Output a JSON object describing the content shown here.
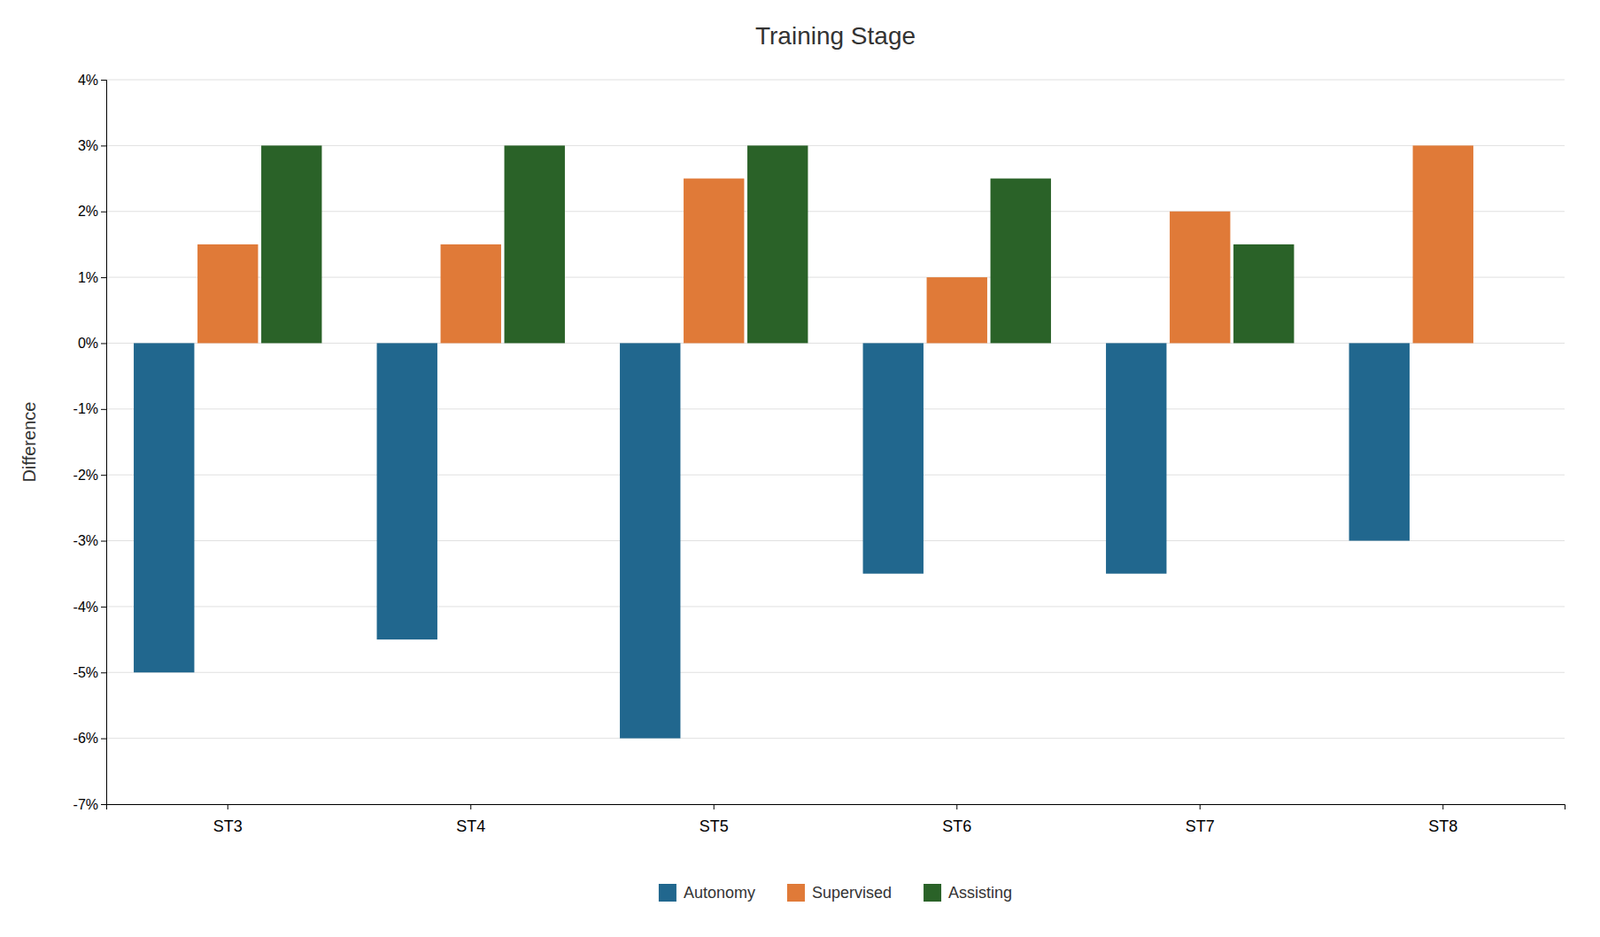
{
  "chart_data": {
    "type": "bar",
    "title": "Training Stage",
    "ylabel": "Difference",
    "categories": [
      "ST3",
      "ST4",
      "ST5",
      "ST6",
      "ST7",
      "ST8"
    ],
    "series": [
      {
        "name": "Autonomy",
        "color": "#21678e",
        "values": [
          -5.0,
          -4.5,
          -6.0,
          -3.5,
          -3.5,
          -3.0
        ]
      },
      {
        "name": "Supervised",
        "color": "#e07a38",
        "values": [
          1.5,
          1.5,
          2.5,
          1.0,
          2.0,
          3.0
        ]
      },
      {
        "name": "Assisting",
        "color": "#2a6228",
        "values": [
          3.0,
          3.0,
          3.0,
          2.5,
          1.5,
          null
        ]
      }
    ],
    "ylim": [
      -7,
      4
    ],
    "yticks": [
      {
        "value": -7,
        "label": "-7%"
      },
      {
        "value": -6,
        "label": "-6%"
      },
      {
        "value": -5,
        "label": "-5%"
      },
      {
        "value": -4,
        "label": "-4%"
      },
      {
        "value": -3,
        "label": "-3%"
      },
      {
        "value": -2,
        "label": "-2%"
      },
      {
        "value": -1,
        "label": "-1%"
      },
      {
        "value": 0,
        "label": "0%"
      },
      {
        "value": 1,
        "label": "1%"
      },
      {
        "value": 2,
        "label": "2%"
      },
      {
        "value": 3,
        "label": "3%"
      },
      {
        "value": 4,
        "label": "4%"
      }
    ],
    "grid": true,
    "legend": "bottom"
  }
}
